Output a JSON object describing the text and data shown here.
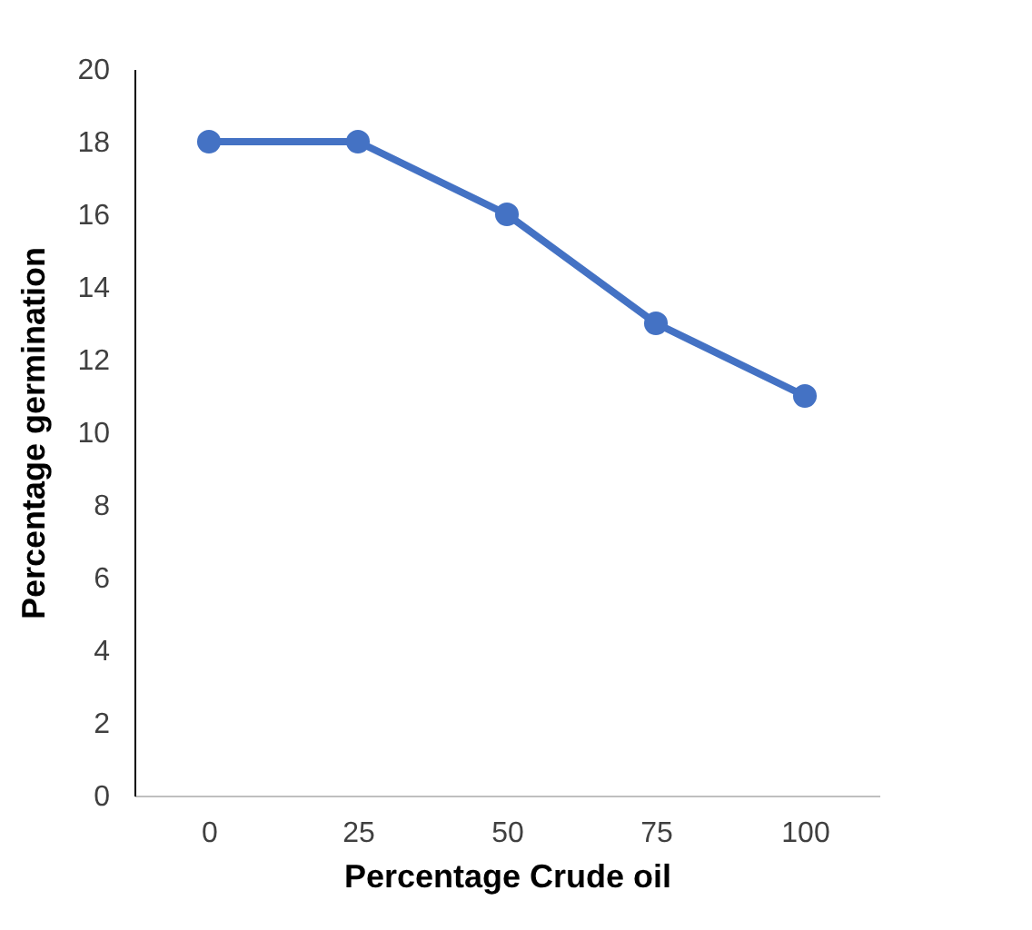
{
  "chart_data": {
    "type": "line",
    "xlabel": "Percentage Crude oil",
    "ylabel": "Percentage germination",
    "categories": [
      "0",
      "25",
      "50",
      "75",
      "100"
    ],
    "series": [
      {
        "color": "#4472c4",
        "values": [
          18,
          18,
          16,
          13,
          11
        ]
      }
    ],
    "ylim": [
      0,
      20
    ],
    "yticks": [
      0,
      2,
      4,
      6,
      8,
      10,
      12,
      14,
      16,
      18,
      20
    ],
    "grid": false,
    "legend": false,
    "marker": "circle",
    "line_style": "solid"
  }
}
